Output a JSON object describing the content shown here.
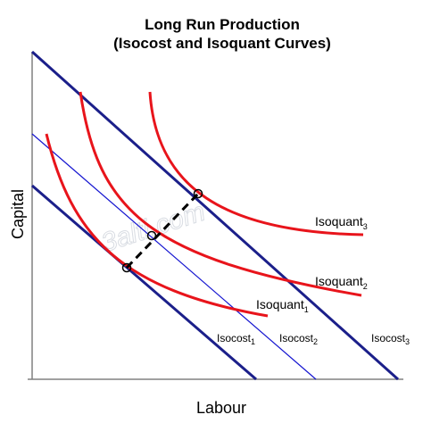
{
  "title": {
    "line1": "Long Run Production",
    "line2": "(Isocost and Isoquant Curves)"
  },
  "axes": {
    "y_label": "Capital",
    "x_label": "Labour"
  },
  "watermark": "3alti.com",
  "isoquants": [
    {
      "base": "Isoquant",
      "sub": "1"
    },
    {
      "base": "Isoquant",
      "sub": "2"
    },
    {
      "base": "Isoquant",
      "sub": "3"
    }
  ],
  "isocosts": [
    {
      "base": "Isocost",
      "sub": "1"
    },
    {
      "base": "Isocost",
      "sub": "2"
    },
    {
      "base": "Isocost",
      "sub": "3"
    }
  ],
  "colors": {
    "isoquant": "#e8141b",
    "isocost": "#1b1f8a",
    "axis": "#808080",
    "expansion_path": "#000000"
  }
}
